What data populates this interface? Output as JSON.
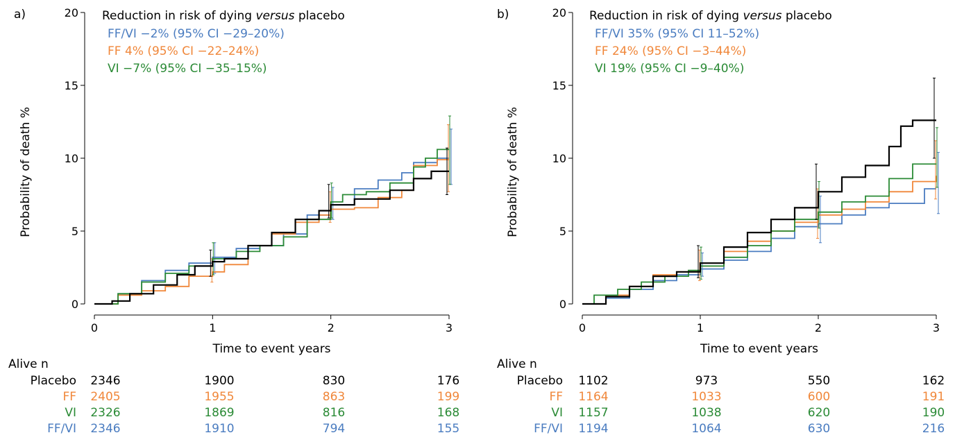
{
  "panels": [
    {
      "panel_label": "a)",
      "legend_title_pre": "Reduction in risk of dying ",
      "legend_title_em": "versus",
      "legend_title_post": " placebo",
      "legend": [
        {
          "text": "FF/VI −2% (95% CI −29–20%)",
          "color": "#4a7cc0"
        },
        {
          "text": "FF 4% (95% CI −22–24%)",
          "color": "#f0873a"
        },
        {
          "text": "VI −7% (95% CI −35–15%)",
          "color": "#2a8a35"
        }
      ],
      "table_title": "Alive n",
      "table_rows": [
        {
          "label": "Placebo",
          "color": "#000000",
          "values": [
            "2346",
            "1900",
            "830",
            "176"
          ]
        },
        {
          "label": "FF",
          "color": "#f0873a",
          "values": [
            "2405",
            "1955",
            "863",
            "199"
          ]
        },
        {
          "label": "VI",
          "color": "#2a8a35",
          "values": [
            "2326",
            "1869",
            "816",
            "168"
          ]
        },
        {
          "label": "FF/VI",
          "color": "#4a7cc0",
          "values": [
            "2346",
            "1910",
            "794",
            "155"
          ]
        }
      ]
    },
    {
      "panel_label": "b)",
      "legend_title_pre": "Reduction in risk of dying ",
      "legend_title_em": "versus",
      "legend_title_post": " placebo",
      "legend": [
        {
          "text": "FF/VI 35% (95% CI 11–52%)",
          "color": "#4a7cc0"
        },
        {
          "text": "FF 24% (95% CI −3–44%)",
          "color": "#f0873a"
        },
        {
          "text": "VI 19% (95% CI −9–40%)",
          "color": "#2a8a35"
        }
      ],
      "table_title": "Alive n",
      "table_rows": [
        {
          "label": "Placebo",
          "color": "#000000",
          "values": [
            "1102",
            "973",
            "550",
            "162"
          ]
        },
        {
          "label": "FF",
          "color": "#f0873a",
          "values": [
            "1164",
            "1033",
            "600",
            "191"
          ]
        },
        {
          "label": "VI",
          "color": "#2a8a35",
          "values": [
            "1157",
            "1038",
            "620",
            "190"
          ]
        },
        {
          "label": "FF/VI",
          "color": "#4a7cc0",
          "values": [
            "1194",
            "1064",
            "630",
            "216"
          ]
        }
      ]
    }
  ],
  "chart_data": [
    {
      "type": "line",
      "step": true,
      "xlabel": "Time to event years",
      "ylabel": "Probability of death %",
      "xlim": [
        0,
        3
      ],
      "ylim": [
        0,
        20
      ],
      "xticks": [
        0,
        1,
        2,
        3
      ],
      "yticks": [
        0,
        5,
        10,
        15,
        20
      ],
      "grid": false,
      "legend_position": "top-left",
      "series": [
        {
          "name": "Placebo",
          "color": "#000000",
          "x": [
            0,
            0.15,
            0.3,
            0.5,
            0.7,
            0.85,
            1.0,
            1.1,
            1.3,
            1.5,
            1.7,
            1.9,
            2.0,
            2.2,
            2.5,
            2.7,
            2.85,
            3.0
          ],
          "y": [
            0,
            0.2,
            0.7,
            1.3,
            2.0,
            2.6,
            2.9,
            3.1,
            4.0,
            4.9,
            5.8,
            6.4,
            6.8,
            7.2,
            7.8,
            8.6,
            9.1,
            9.1
          ],
          "ci_at_x": [
            1,
            2,
            3
          ],
          "ci_low": [
            1.9,
            5.9,
            7.5
          ],
          "ci_high": [
            3.7,
            8.2,
            10.7
          ]
        },
        {
          "name": "FF",
          "color": "#f0873a",
          "x": [
            0,
            0.2,
            0.4,
            0.6,
            0.8,
            1.0,
            1.1,
            1.3,
            1.5,
            1.7,
            1.9,
            2.0,
            2.2,
            2.4,
            2.6,
            2.7,
            2.9,
            3.0
          ],
          "y": [
            0,
            0.6,
            0.9,
            1.2,
            1.9,
            2.2,
            2.7,
            4.0,
            4.8,
            5.6,
            6.1,
            6.5,
            6.6,
            7.3,
            7.8,
            9.5,
            9.9,
            9.9
          ],
          "ci_at_x": [
            1,
            2,
            3
          ],
          "ci_low": [
            1.5,
            5.6,
            7.7
          ],
          "ci_high": [
            3.1,
            7.7,
            12.3
          ]
        },
        {
          "name": "VI",
          "color": "#2a8a35",
          "x": [
            0,
            0.2,
            0.4,
            0.6,
            0.8,
            1.0,
            1.2,
            1.4,
            1.6,
            1.8,
            2.0,
            2.1,
            2.3,
            2.5,
            2.7,
            2.8,
            2.9,
            3.0
          ],
          "y": [
            0,
            0.7,
            1.5,
            2.1,
            2.6,
            3.1,
            3.6,
            4.0,
            4.6,
            5.8,
            7.0,
            7.5,
            7.7,
            8.3,
            9.4,
            10.0,
            10.6,
            10.6
          ],
          "ci_at_x": [
            1,
            2,
            3
          ],
          "ci_low": [
            2.0,
            5.9,
            8.2
          ],
          "ci_high": [
            4.2,
            8.3,
            12.9
          ]
        },
        {
          "name": "FF/VI",
          "color": "#4a7cc0",
          "x": [
            0,
            0.2,
            0.4,
            0.6,
            0.8,
            1.0,
            1.2,
            1.4,
            1.6,
            1.8,
            2.0,
            2.2,
            2.4,
            2.6,
            2.7,
            2.8,
            2.9,
            3.0
          ],
          "y": [
            0,
            0.7,
            1.6,
            2.3,
            2.8,
            3.2,
            3.8,
            4.0,
            4.8,
            6.1,
            6.8,
            7.9,
            8.5,
            9.0,
            9.7,
            9.7,
            10.0,
            10.0
          ],
          "ci_at_x": [
            1,
            2,
            3
          ],
          "ci_low": [
            2.1,
            5.8,
            8.2
          ],
          "ci_high": [
            4.2,
            8.0,
            12.0
          ]
        }
      ]
    },
    {
      "type": "line",
      "step": true,
      "xlabel": "Time to event years",
      "ylabel": "Probability of death %",
      "xlim": [
        0,
        3
      ],
      "ylim": [
        0,
        20
      ],
      "xticks": [
        0,
        1,
        2,
        3
      ],
      "yticks": [
        0,
        5,
        10,
        15,
        20
      ],
      "grid": false,
      "legend_position": "top-left",
      "series": [
        {
          "name": "Placebo",
          "color": "#000000",
          "x": [
            0,
            0.2,
            0.4,
            0.6,
            0.8,
            1.0,
            1.2,
            1.4,
            1.6,
            1.8,
            2.0,
            2.2,
            2.4,
            2.6,
            2.7,
            2.8,
            3.0
          ],
          "y": [
            0,
            0.5,
            1.2,
            1.9,
            2.2,
            2.8,
            3.9,
            4.9,
            5.8,
            6.6,
            7.7,
            8.7,
            9.5,
            10.8,
            12.2,
            12.6,
            12.6
          ],
          "ci_at_x": [
            1,
            2,
            3
          ],
          "ci_low": [
            1.8,
            5.8,
            10.0
          ],
          "ci_high": [
            4.0,
            9.6,
            15.5
          ]
        },
        {
          "name": "FF",
          "color": "#f0873a",
          "x": [
            0,
            0.2,
            0.4,
            0.6,
            0.8,
            1.0,
            1.2,
            1.4,
            1.6,
            1.8,
            2.0,
            2.2,
            2.4,
            2.6,
            2.8,
            3.0
          ],
          "y": [
            0,
            0.6,
            1.2,
            2.0,
            2.2,
            2.6,
            3.6,
            4.3,
            5.0,
            5.6,
            6.1,
            6.5,
            7.0,
            7.7,
            8.4,
            8.8
          ],
          "ci_at_x": [
            1,
            2,
            3
          ],
          "ci_low": [
            1.6,
            4.5,
            7.2
          ],
          "ci_high": [
            3.7,
            7.9,
            11.2
          ]
        },
        {
          "name": "VI",
          "color": "#2a8a35",
          "x": [
            0,
            0.1,
            0.3,
            0.5,
            0.7,
            0.9,
            1.0,
            1.2,
            1.4,
            1.6,
            1.8,
            2.0,
            2.2,
            2.4,
            2.6,
            2.8,
            3.0
          ],
          "y": [
            0,
            0.6,
            1.0,
            1.5,
            1.9,
            2.3,
            2.6,
            3.2,
            4.0,
            5.0,
            5.8,
            6.3,
            7.0,
            7.4,
            8.6,
            9.6,
            9.6
          ],
          "ci_at_x": [
            1,
            2,
            3
          ],
          "ci_low": [
            1.7,
            5.2,
            8.0
          ],
          "ci_high": [
            3.9,
            8.4,
            12.1
          ]
        },
        {
          "name": "FF/VI",
          "color": "#4a7cc0",
          "x": [
            0,
            0.2,
            0.4,
            0.6,
            0.8,
            1.0,
            1.2,
            1.4,
            1.6,
            1.8,
            2.0,
            2.2,
            2.4,
            2.6,
            2.8,
            2.9,
            3.0
          ],
          "y": [
            0,
            0.4,
            1.0,
            1.6,
            2.0,
            2.4,
            3.0,
            3.6,
            4.5,
            5.3,
            5.5,
            6.1,
            6.6,
            6.9,
            6.9,
            7.9,
            7.9
          ],
          "ci_at_x": [
            1,
            2,
            3
          ],
          "ci_low": [
            1.9,
            4.2,
            6.2
          ],
          "ci_high": [
            3.5,
            7.4,
            10.4
          ]
        }
      ]
    }
  ]
}
